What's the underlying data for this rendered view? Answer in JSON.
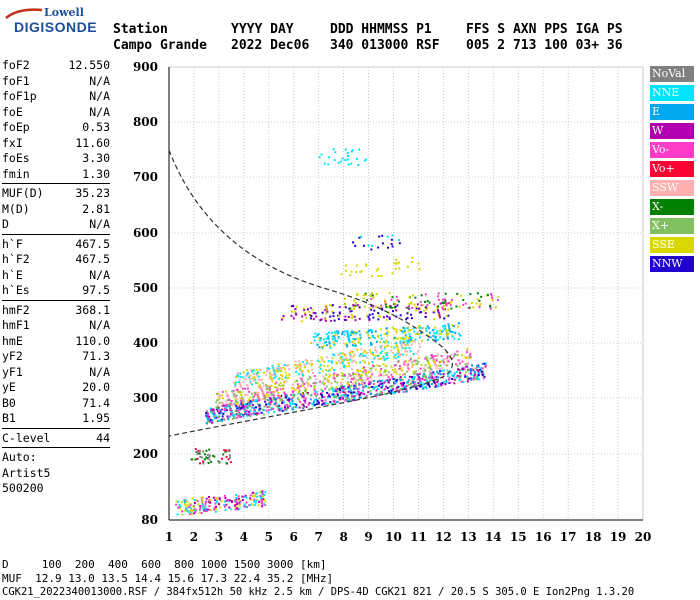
{
  "logo": {
    "top": "Lowell",
    "bottom": "DIGISONDE"
  },
  "header": {
    "line1": [
      "Station",
      "YYYY DAY",
      "DDD HHMMSS P1",
      "FFS S AXN PPS IGA PS"
    ],
    "line2": [
      "Campo Grande",
      "2022 Dec06",
      "340 013000 RSF",
      "005 2 713 100 03+ 36"
    ]
  },
  "params_group1": [
    {
      "name": "foF2",
      "value": "12.550"
    },
    {
      "name": "foF1",
      "value": "N/A"
    },
    {
      "name": "foF1p",
      "value": "N/A"
    },
    {
      "name": "foE",
      "value": "N/A"
    },
    {
      "name": "foEp",
      "value": "0.53"
    },
    {
      "name": "fxI",
      "value": "11.60"
    },
    {
      "name": "foEs",
      "value": "3.30"
    },
    {
      "name": "fmin",
      "value": "1.30"
    }
  ],
  "params_group2": [
    {
      "name": "MUF(D)",
      "value": "35.23"
    },
    {
      "name": "M(D)",
      "value": "2.81"
    },
    {
      "name": "D",
      "value": "N/A"
    }
  ],
  "params_group3": [
    {
      "name": "h`F",
      "value": "467.5"
    },
    {
      "name": "h`F2",
      "value": "467.5"
    },
    {
      "name": "h`E",
      "value": "N/A"
    },
    {
      "name": "h`Es",
      "value": "97.5"
    }
  ],
  "params_group4": [
    {
      "name": "hmF2",
      "value": "368.1"
    },
    {
      "name": "hmF1",
      "value": "N/A"
    },
    {
      "name": "hmE",
      "value": "110.0"
    },
    {
      "name": "yF2",
      "value": "71.3"
    },
    {
      "name": "yF1",
      "value": "N/A"
    },
    {
      "name": "yE",
      "value": "20.0"
    },
    {
      "name": "B0",
      "value": "71.4"
    },
    {
      "name": "B1",
      "value": "1.95"
    }
  ],
  "params_group5": [
    {
      "name": "C-level",
      "value": "44"
    }
  ],
  "auto": [
    "Auto:",
    "Artist5",
    "500200"
  ],
  "legend": [
    {
      "label": "NoVal",
      "color": "#808080"
    },
    {
      "label": "NNE",
      "color": "#00e5ff"
    },
    {
      "label": "E",
      "color": "#00a8f0"
    },
    {
      "label": "W",
      "color": "#b000b0"
    },
    {
      "label": "Vo-",
      "color": "#ff3cc8"
    },
    {
      "label": "Vo+",
      "color": "#ff0033"
    },
    {
      "label": "SSW",
      "color": "#ffb0b0"
    },
    {
      "label": "X-",
      "color": "#008000"
    },
    {
      "label": "X+",
      "color": "#80c060"
    },
    {
      "label": "SSE",
      "color": "#d8d800"
    },
    {
      "label": "NNW",
      "color": "#2000d0"
    }
  ],
  "axes": {
    "x_ticks": [
      "1",
      "2",
      "3",
      "4",
      "5",
      "6",
      "7",
      "8",
      "9",
      "10",
      "11",
      "12",
      "13",
      "14",
      "15",
      "16",
      "17",
      "18",
      "19",
      "20"
    ],
    "y_ticks": [
      "900",
      "800",
      "700",
      "600",
      "500",
      "400",
      "300",
      "200",
      "80"
    ]
  },
  "footer": {
    "line1": "D     100  200  400  600  800 1000 1500 3000 [km]",
    "line2": "MUF  12.9 13.0 13.5 14.4 15.6 17.3 22.4 35.2 [MHz]",
    "line3": "CGK21_2022340013000.RSF / 384fx512h 50 kHz 2.5 km / DPS-4D CGK21 821 / 20.5 S 305.0 E Ion2Png 1.3.20"
  }
}
